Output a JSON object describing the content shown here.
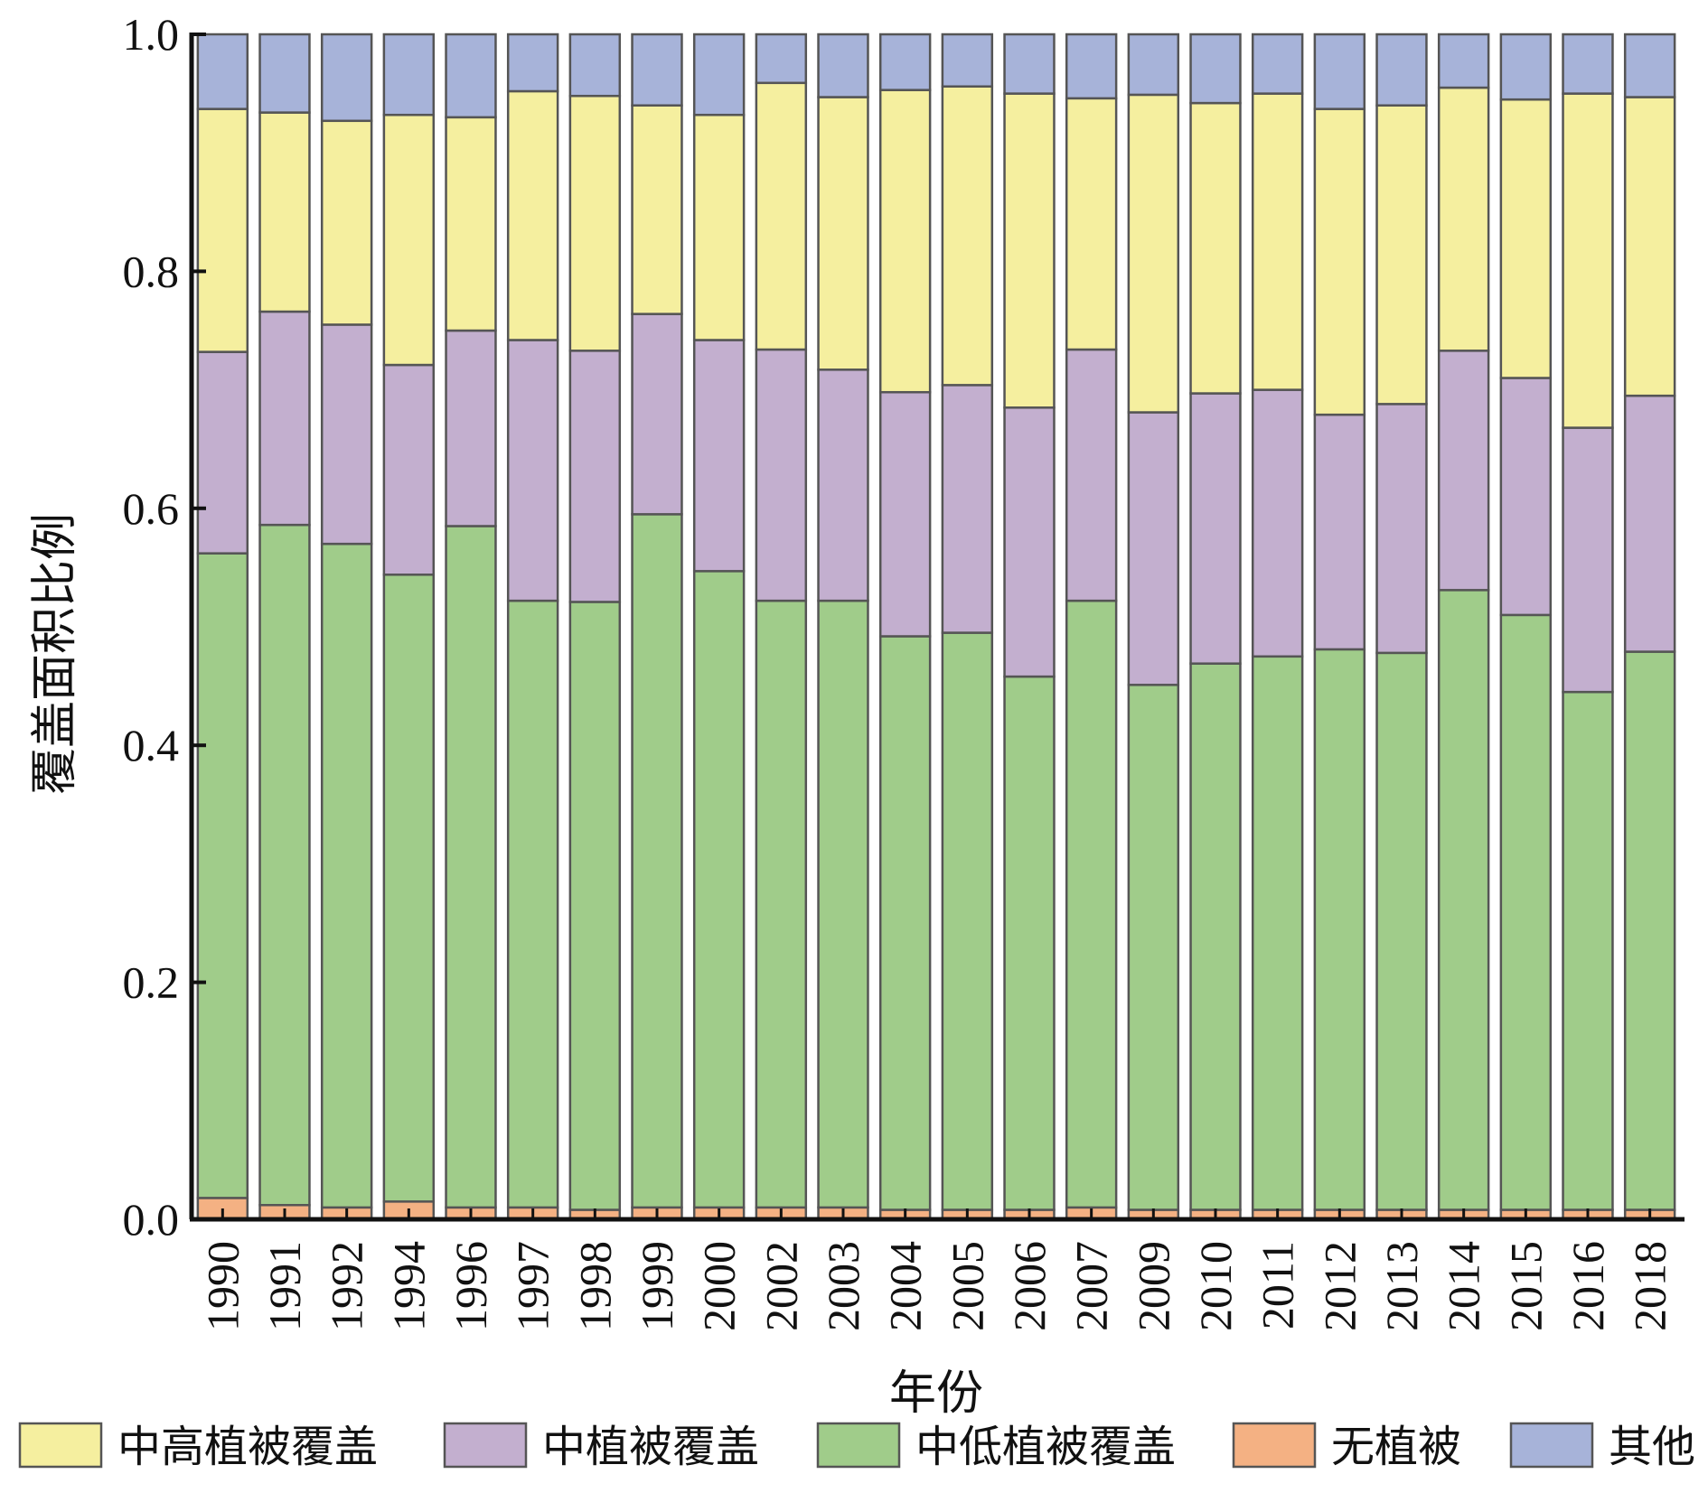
{
  "chart_data": {
    "type": "bar",
    "stacked": true,
    "xlabel": "年份",
    "ylabel": "覆盖面积比例",
    "ylim": [
      0,
      1.0
    ],
    "yticks": [
      "0.0",
      "0.2",
      "0.4",
      "0.6",
      "0.8",
      "1.0"
    ],
    "grid": false,
    "legend_position": "bottom",
    "categories": [
      "1990",
      "1991",
      "1992",
      "1994",
      "1996",
      "1997",
      "1998",
      "1999",
      "2000",
      "2002",
      "2003",
      "2004",
      "2005",
      "2006",
      "2007",
      "2009",
      "2010",
      "2011",
      "2012",
      "2013",
      "2014",
      "2015",
      "2016",
      "2018"
    ],
    "series": [
      {
        "name": "无植被",
        "color": "#f4b183",
        "values": [
          0.018,
          0.012,
          0.01,
          0.015,
          0.01,
          0.01,
          0.008,
          0.01,
          0.01,
          0.01,
          0.01,
          0.008,
          0.008,
          0.008,
          0.01,
          0.008,
          0.008,
          0.008,
          0.008,
          0.008,
          0.008,
          0.008,
          0.008,
          0.008
        ]
      },
      {
        "name": "中低植被覆盖",
        "color": "#a0cc8a",
        "values": [
          0.544,
          0.574,
          0.56,
          0.529,
          0.575,
          0.512,
          0.513,
          0.585,
          0.537,
          0.512,
          0.512,
          0.484,
          0.487,
          0.45,
          0.512,
          0.443,
          0.461,
          0.467,
          0.473,
          0.47,
          0.523,
          0.502,
          0.437,
          0.471
        ]
      },
      {
        "name": "中植被覆盖",
        "color": "#c3afcf",
        "values": [
          0.17,
          0.18,
          0.185,
          0.177,
          0.165,
          0.22,
          0.212,
          0.169,
          0.195,
          0.212,
          0.195,
          0.206,
          0.209,
          0.227,
          0.212,
          0.23,
          0.228,
          0.225,
          0.198,
          0.21,
          0.202,
          0.2,
          0.223,
          0.216
        ]
      },
      {
        "name": "中高植被覆盖",
        "color": "#f5ef9f",
        "values": [
          0.205,
          0.168,
          0.172,
          0.211,
          0.18,
          0.21,
          0.215,
          0.176,
          0.19,
          0.225,
          0.23,
          0.255,
          0.252,
          0.265,
          0.212,
          0.268,
          0.245,
          0.25,
          0.258,
          0.252,
          0.222,
          0.235,
          0.282,
          0.252
        ]
      },
      {
        "name": "其他",
        "color": "#a7b3d9",
        "values": [
          0.063,
          0.066,
          0.073,
          0.068,
          0.07,
          0.048,
          0.052,
          0.06,
          0.068,
          0.041,
          0.053,
          0.047,
          0.044,
          0.05,
          0.054,
          0.051,
          0.058,
          0.05,
          0.063,
          0.06,
          0.045,
          0.055,
          0.05,
          0.053
        ]
      }
    ],
    "legend_order": [
      "中高植被覆盖",
      "中植被覆盖",
      "中低植被覆盖",
      "无植被",
      "其他"
    ]
  }
}
